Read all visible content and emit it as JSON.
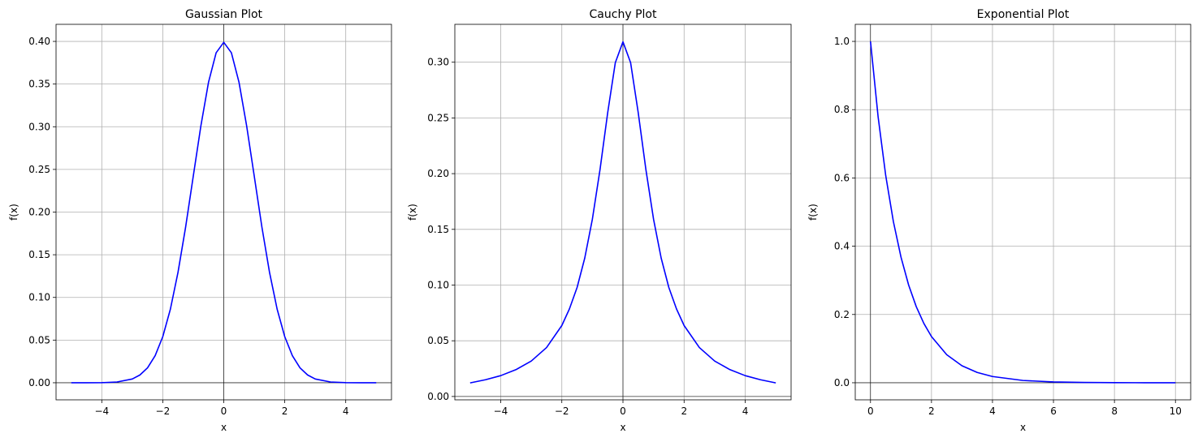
{
  "chart_data": [
    {
      "type": "line",
      "title": "Gaussian Plot",
      "xlabel": "x",
      "ylabel": "f(x)",
      "xlim": [
        -5.5,
        5.5
      ],
      "ylim": [
        -0.02,
        0.42
      ],
      "xticks": [
        -4,
        -2,
        0,
        2,
        4
      ],
      "xtick_labels": [
        "−4",
        "−2",
        "0",
        "2",
        "4"
      ],
      "yticks": [
        0.0,
        0.05,
        0.1,
        0.15,
        0.2,
        0.25,
        0.3,
        0.35,
        0.4
      ],
      "ytick_labels": [
        "0.00",
        "0.05",
        "0.10",
        "0.15",
        "0.20",
        "0.25",
        "0.30",
        "0.35",
        "0.40"
      ],
      "grid": true,
      "zero_lines": true,
      "line_color": "#0000ff",
      "series": [
        {
          "x": [
            -5,
            -4.5,
            -4,
            -3.5,
            -3,
            -2.75,
            -2.5,
            -2.25,
            -2,
            -1.75,
            -1.5,
            -1.25,
            -1,
            -0.75,
            -0.5,
            -0.25,
            0,
            0.25,
            0.5,
            0.75,
            1,
            1.25,
            1.5,
            1.75,
            2,
            2.25,
            2.5,
            2.75,
            3,
            3.5,
            4,
            4.5,
            5
          ],
          "values": [
            0.0,
            0.0,
            0.0001,
            0.0009,
            0.0044,
            0.0091,
            0.0175,
            0.0317,
            0.054,
            0.0863,
            0.1295,
            0.1826,
            0.242,
            0.3011,
            0.3521,
            0.3867,
            0.3989,
            0.3867,
            0.3521,
            0.3011,
            0.242,
            0.1826,
            0.1295,
            0.0863,
            0.054,
            0.0317,
            0.0175,
            0.0091,
            0.0044,
            0.0009,
            0.0001,
            0.0,
            0.0
          ]
        }
      ]
    },
    {
      "type": "line",
      "title": "Cauchy Plot",
      "xlabel": "x",
      "ylabel": "f(x)",
      "xlim": [
        -5.5,
        5.5
      ],
      "ylim": [
        -0.003,
        0.334
      ],
      "xticks": [
        -4,
        -2,
        0,
        2,
        4
      ],
      "xtick_labels": [
        "−4",
        "−2",
        "0",
        "2",
        "4"
      ],
      "yticks": [
        0.0,
        0.05,
        0.1,
        0.15,
        0.2,
        0.25,
        0.3
      ],
      "ytick_labels": [
        "0.00",
        "0.05",
        "0.10",
        "0.15",
        "0.20",
        "0.25",
        "0.30"
      ],
      "grid": true,
      "zero_lines": true,
      "line_color": "#0000ff",
      "series": [
        {
          "x": [
            -5,
            -4.5,
            -4,
            -3.5,
            -3,
            -2.5,
            -2,
            -1.75,
            -1.5,
            -1.25,
            -1,
            -0.75,
            -0.5,
            -0.25,
            0,
            0.25,
            0.5,
            0.75,
            1,
            1.25,
            1.5,
            1.75,
            2,
            2.5,
            3,
            3.5,
            4,
            4.5,
            5
          ],
          "values": [
            0.0122,
            0.015,
            0.0187,
            0.0241,
            0.0318,
            0.0439,
            0.0637,
            0.0787,
            0.0979,
            0.1242,
            0.1592,
            0.2037,
            0.2546,
            0.2996,
            0.3183,
            0.2996,
            0.2546,
            0.2037,
            0.1592,
            0.1242,
            0.0979,
            0.0787,
            0.0637,
            0.0439,
            0.0318,
            0.0241,
            0.0187,
            0.015,
            0.0122
          ]
        }
      ]
    },
    {
      "type": "line",
      "title": "Exponential Plot",
      "xlabel": "x",
      "ylabel": "f(x)",
      "xlim": [
        -0.5,
        10.5
      ],
      "ylim": [
        -0.05,
        1.05
      ],
      "xticks": [
        0,
        2,
        4,
        6,
        8,
        10
      ],
      "xtick_labels": [
        "0",
        "2",
        "4",
        "6",
        "8",
        "10"
      ],
      "yticks": [
        0.0,
        0.2,
        0.4,
        0.6,
        0.8,
        1.0
      ],
      "ytick_labels": [
        "0.0",
        "0.2",
        "0.4",
        "0.6",
        "0.8",
        "1.0"
      ],
      "grid": true,
      "zero_lines": true,
      "line_color": "#0000ff",
      "series": [
        {
          "x": [
            0,
            0.25,
            0.5,
            0.75,
            1,
            1.25,
            1.5,
            1.75,
            2,
            2.5,
            3,
            3.5,
            4,
            5,
            6,
            7,
            8,
            9,
            10
          ],
          "values": [
            1.0,
            0.7788,
            0.6065,
            0.4724,
            0.3679,
            0.2865,
            0.2231,
            0.1738,
            0.1353,
            0.0821,
            0.0498,
            0.0302,
            0.0183,
            0.0067,
            0.0025,
            0.0009,
            0.0003,
            0.0001,
            0.0
          ]
        }
      ]
    }
  ]
}
